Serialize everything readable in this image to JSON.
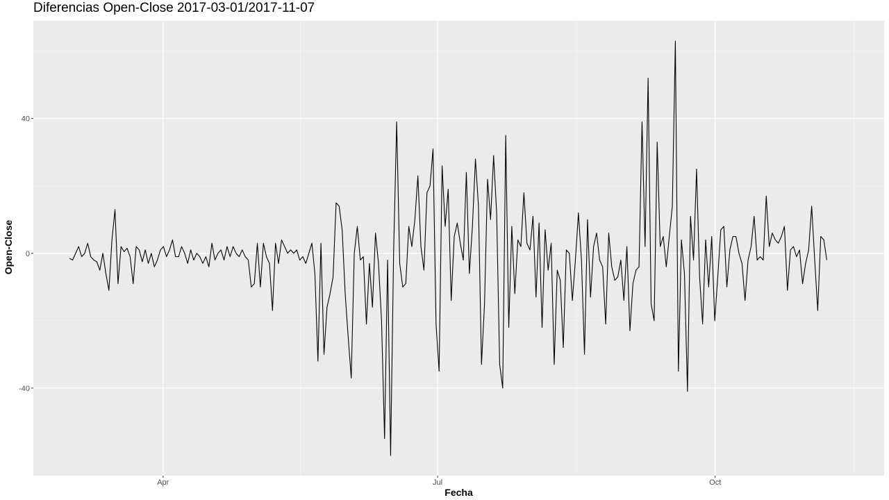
{
  "chart_data": {
    "type": "line",
    "title": "Diferencias Open-Close 2017-03-01/2017-11-07",
    "xlabel": "Fecha",
    "ylabel": "Open-Close",
    "x_range": [
      "2017-02-17",
      "2017-11-26"
    ],
    "ylim": [
      -66,
      69
    ],
    "x_ticks": [
      {
        "date": "2017-04-01",
        "label": "Apr"
      },
      {
        "date": "2017-07-01",
        "label": "Jul"
      },
      {
        "date": "2017-10-01",
        "label": "Oct"
      }
    ],
    "y_ticks": [
      -40,
      0,
      40
    ],
    "y_minor_ticks": [
      -60,
      -20,
      20,
      60
    ],
    "line_color": "#000000",
    "panel_background": "#ebebeb",
    "grid": true,
    "series": [
      {
        "x_start": "2017-03-01",
        "x_end": "2017-11-07",
        "values": [
          -1.5,
          -2,
          0,
          2,
          -1,
          0,
          3,
          -1,
          -2,
          -2.5,
          -5,
          0,
          -6,
          -11,
          4,
          13,
          -9,
          2,
          0.5,
          1.5,
          -1,
          -9,
          2,
          1,
          -2.5,
          1,
          -3,
          0,
          -4,
          -2,
          1,
          2,
          -1,
          1,
          4,
          -1,
          -1,
          2,
          0,
          -3,
          1,
          -2,
          0,
          -1,
          -3,
          -1,
          -4,
          3,
          -2,
          0,
          1,
          -2,
          2,
          -1,
          2,
          0,
          -1,
          1,
          -1,
          -2,
          -10,
          -9,
          3,
          -10,
          3,
          -1,
          -3,
          -17,
          3,
          -3,
          4,
          2,
          0,
          1,
          0,
          1,
          -2,
          -1,
          -3,
          0,
          3,
          -6,
          -32,
          3,
          -30,
          -16,
          -12,
          -7,
          15,
          14,
          7,
          -12,
          -25,
          -37,
          0,
          8,
          -2,
          -1,
          -21,
          -3,
          -16,
          6,
          -3,
          -20,
          -55,
          -2,
          -60,
          1,
          39,
          -3,
          -10,
          -9,
          8,
          2,
          10,
          23,
          2,
          -5,
          18,
          20,
          31,
          -21,
          -35,
          26,
          8,
          19,
          -14,
          5,
          9,
          3,
          -2,
          24,
          -6,
          8,
          28,
          14,
          -33,
          -15,
          22,
          10,
          29,
          12,
          -33,
          -40,
          35,
          -22,
          8,
          -12,
          4,
          2,
          18,
          3,
          1,
          11,
          -13,
          9,
          -22,
          7,
          -5,
          3,
          -33,
          -5,
          -8,
          -28,
          1,
          0,
          -14,
          -2,
          12,
          -2,
          -30,
          10,
          -13,
          2,
          6,
          -2,
          -4,
          -21,
          6,
          -4,
          -8,
          -7,
          -2,
          -14,
          2,
          -23,
          -9,
          -5,
          -4,
          39,
          2,
          52,
          -15,
          -20,
          33,
          2,
          5,
          -4,
          5,
          14,
          63,
          -35,
          4,
          -6,
          -41,
          11,
          -2,
          25,
          -7,
          -21,
          4,
          -10,
          5,
          -20,
          -7,
          7,
          8,
          -10,
          1,
          5,
          5,
          0,
          -3,
          -14,
          -2,
          2,
          11,
          -2,
          -1,
          -2,
          17,
          2,
          6,
          4,
          3,
          5,
          8,
          -11,
          1,
          2,
          -1,
          1,
          -9,
          -3,
          1,
          14,
          -2,
          -17,
          5,
          4,
          -2
        ]
      }
    ]
  }
}
